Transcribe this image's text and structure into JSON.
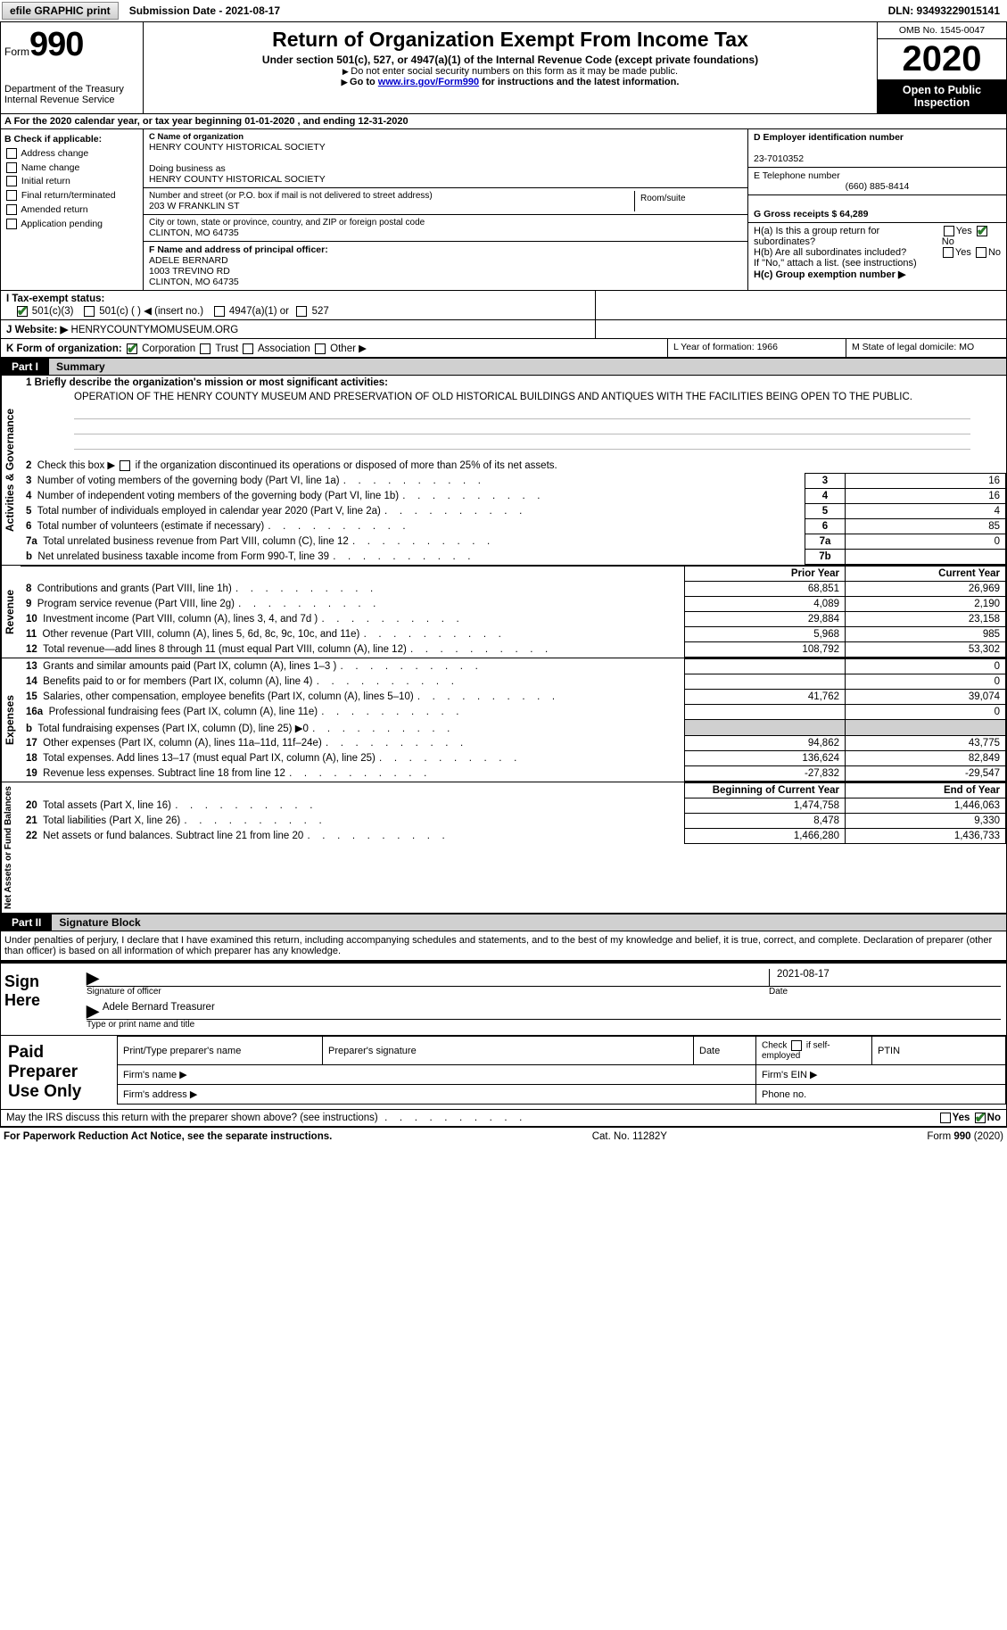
{
  "topbar": {
    "btn1": "efile GRAPHIC print",
    "btn2": "Submission Date - 2021-08-17",
    "dln": "DLN: 93493229015141"
  },
  "header": {
    "form_word": "Form",
    "form_num": "990",
    "dept": "Department of the Treasury\nInternal Revenue Service",
    "title": "Return of Organization Exempt From Income Tax",
    "subtitle": "Under section 501(c), 527, or 4947(a)(1) of the Internal Revenue Code (except private foundations)",
    "note1": "Do not enter social security numbers on this form as it may be made public.",
    "note2_pre": "Go to ",
    "note2_link": "www.irs.gov/Form990",
    "note2_post": " for instructions and the latest information.",
    "omb": "OMB No. 1545-0047",
    "year": "2020",
    "inspect": "Open to Public Inspection"
  },
  "period": "A For the 2020 calendar year, or tax year beginning 01-01-2020    , and ending 12-31-2020",
  "sectionB": {
    "check_label": "B Check if applicable:",
    "opts": [
      "Address change",
      "Name change",
      "Initial return",
      "Final return/terminated",
      "Amended return",
      "Application pending"
    ],
    "C_label": "C Name of organization",
    "C_name": "HENRY COUNTY HISTORICAL SOCIETY",
    "dba_label": "Doing business as",
    "dba": "HENRY COUNTY HISTORICAL SOCIETY",
    "addr_label": "Number and street (or P.O. box if mail is not delivered to street address)",
    "addr": "203 W FRANKLIN ST",
    "room_label": "Room/suite",
    "city_label": "City or town, state or province, country, and ZIP or foreign postal code",
    "city": "CLINTON, MO  64735",
    "D_label": "D Employer identification number",
    "D_val": "23-7010352",
    "E_label": "E Telephone number",
    "E_val": "(660) 885-8414",
    "G_label": "G Gross receipts $ 64,289",
    "F_label": "F  Name and address of principal officer:",
    "F_name": "ADELE BERNARD",
    "F_addr1": "1003 TREVINO RD",
    "F_addr2": "CLINTON, MO  64735",
    "Ha": "H(a)  Is this a group return for subordinates?",
    "Hb": "H(b)  Are all subordinates included?",
    "H_note": "If \"No,\" attach a list. (see instructions)",
    "Hc": "H(c)  Group exemption number ▶",
    "yes": "Yes",
    "no": "No"
  },
  "lineI": {
    "label": "I  Tax-exempt status:",
    "o1": "501(c)(3)",
    "o2": "501(c) (   ) ◀ (insert no.)",
    "o3": "4947(a)(1) or",
    "o4": "527"
  },
  "lineJ": {
    "label": "J  Website: ▶",
    "val": "HENRYCOUNTYMOMUSEUM.ORG"
  },
  "lineK": {
    "label": "K Form of organization:",
    "o1": "Corporation",
    "o2": "Trust",
    "o3": "Association",
    "o4": "Other ▶",
    "L": "L Year of formation: 1966",
    "M": "M State of legal domicile: MO"
  },
  "part1": {
    "title_l": "Part I",
    "title_r": "Summary",
    "side1": "Activities & Governance",
    "side2": "Revenue",
    "side3": "Expenses",
    "side4": "Net Assets or Fund Balances",
    "l1_label": "1  Briefly describe the organization's mission or most significant activities:",
    "l1_text": "OPERATION OF THE HENRY COUNTY MUSEUM AND PRESERVATION OF OLD HISTORICAL BUILDINGS AND ANTIQUES WITH THE FACILITIES BEING OPEN TO THE PUBLIC.",
    "l2": "2   Check this box ▶        if the organization discontinued its operations or disposed of more than 25% of its net assets.",
    "rows_gov": [
      {
        "n": "3",
        "t": "Number of voting members of the governing body (Part VI, line 1a)",
        "b": "3",
        "v": "16"
      },
      {
        "n": "4",
        "t": "Number of independent voting members of the governing body (Part VI, line 1b)",
        "b": "4",
        "v": "16"
      },
      {
        "n": "5",
        "t": "Total number of individuals employed in calendar year 2020 (Part V, line 2a)",
        "b": "5",
        "v": "4"
      },
      {
        "n": "6",
        "t": "Total number of volunteers (estimate if necessary)",
        "b": "6",
        "v": "85"
      },
      {
        "n": "7a",
        "t": "Total unrelated business revenue from Part VIII, column (C), line 12",
        "b": "7a",
        "v": "0"
      },
      {
        "n": "b",
        "t": "Net unrelated business taxable income from Form 990-T, line 39",
        "b": "7b",
        "v": ""
      }
    ],
    "col_prior": "Prior Year",
    "col_curr": "Current Year",
    "rows_rev": [
      {
        "n": "8",
        "t": "Contributions and grants (Part VIII, line 1h)",
        "p": "68,851",
        "c": "26,969"
      },
      {
        "n": "9",
        "t": "Program service revenue (Part VIII, line 2g)",
        "p": "4,089",
        "c": "2,190"
      },
      {
        "n": "10",
        "t": "Investment income (Part VIII, column (A), lines 3, 4, and 7d )",
        "p": "29,884",
        "c": "23,158"
      },
      {
        "n": "11",
        "t": "Other revenue (Part VIII, column (A), lines 5, 6d, 8c, 9c, 10c, and 11e)",
        "p": "5,968",
        "c": "985"
      },
      {
        "n": "12",
        "t": "Total revenue—add lines 8 through 11 (must equal Part VIII, column (A), line 12)",
        "p": "108,792",
        "c": "53,302"
      }
    ],
    "rows_exp": [
      {
        "n": "13",
        "t": "Grants and similar amounts paid (Part IX, column (A), lines 1–3 )",
        "p": "",
        "c": "0"
      },
      {
        "n": "14",
        "t": "Benefits paid to or for members (Part IX, column (A), line 4)",
        "p": "",
        "c": "0"
      },
      {
        "n": "15",
        "t": "Salaries, other compensation, employee benefits (Part IX, column (A), lines 5–10)",
        "p": "41,762",
        "c": "39,074"
      },
      {
        "n": "16a",
        "t": "Professional fundraising fees (Part IX, column (A), line 11e)",
        "p": "",
        "c": "0"
      },
      {
        "n": "b",
        "t": "Total fundraising expenses (Part IX, column (D), line 25) ▶0",
        "p": "SHADE",
        "c": "SHADE"
      },
      {
        "n": "17",
        "t": "Other expenses (Part IX, column (A), lines 11a–11d, 11f–24e)",
        "p": "94,862",
        "c": "43,775"
      },
      {
        "n": "18",
        "t": "Total expenses. Add lines 13–17 (must equal Part IX, column (A), line 25)",
        "p": "136,624",
        "c": "82,849"
      },
      {
        "n": "19",
        "t": "Revenue less expenses. Subtract line 18 from line 12",
        "p": "-27,832",
        "c": "-29,547"
      }
    ],
    "col_beg": "Beginning of Current Year",
    "col_end": "End of Year",
    "rows_net": [
      {
        "n": "20",
        "t": "Total assets (Part X, line 16)",
        "p": "1,474,758",
        "c": "1,446,063"
      },
      {
        "n": "21",
        "t": "Total liabilities (Part X, line 26)",
        "p": "8,478",
        "c": "9,330"
      },
      {
        "n": "22",
        "t": "Net assets or fund balances. Subtract line 21 from line 20",
        "p": "1,466,280",
        "c": "1,436,733"
      }
    ]
  },
  "part2": {
    "title_l": "Part II",
    "title_r": "Signature Block",
    "decl": "Under penalties of perjury, I declare that I have examined this return, including accompanying schedules and statements, and to the best of my knowledge and belief, it is true, correct, and complete. Declaration of preparer (other than officer) is based on all information of which preparer has any knowledge.",
    "sign_here": "Sign Here",
    "sig_officer": "Signature of officer",
    "sig_date": "2021-08-17",
    "date_lbl": "Date",
    "sig_name": "Adele Bernard  Treasurer",
    "sig_type": "Type or print name and title",
    "paid": "Paid Preparer Use Only",
    "pt_name": "Print/Type preparer's name",
    "pt_sig": "Preparer's signature",
    "pt_date": "Date",
    "pt_check": "Check         if self-employed",
    "pt_ptin": "PTIN",
    "firm_name": "Firm's name   ▶",
    "firm_ein": "Firm's EIN ▶",
    "firm_addr": "Firm's address ▶",
    "phone": "Phone no."
  },
  "irs_discuss": "May the IRS discuss this return with the preparer shown above? (see instructions)",
  "footer": {
    "left": "For Paperwork Reduction Act Notice, see the separate instructions.",
    "mid": "Cat. No. 11282Y",
    "right_a": "Form ",
    "right_b": "990",
    "right_c": " (2020)"
  }
}
